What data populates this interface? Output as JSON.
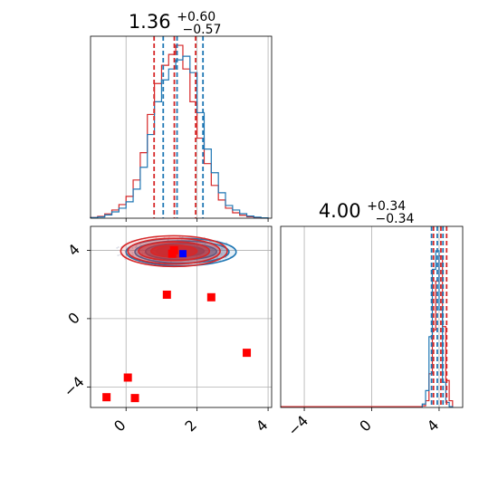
{
  "chart_data": {
    "type": "corner",
    "colors": {
      "series_a": "#1f77b4",
      "series_b": "#d62728",
      "points": "#ff0000",
      "truth": "#0000ff",
      "grid": "#b0b0b0",
      "scatter": "#c8cbd8"
    },
    "panels": {
      "param1_hist": {
        "title": {
          "median": "1.36",
          "plus": "+0.60",
          "minus": "−0.57"
        },
        "xlim": [
          -1,
          4.1
        ],
        "xticks": [
          0,
          2,
          4
        ],
        "quantiles_a": [
          0.97,
          1.36,
          2.09
        ],
        "quantiles_b": [
          0.79,
          1.36,
          1.96
        ],
        "bins": [
          -0.9,
          -0.7,
          -0.5,
          -0.3,
          -0.1,
          0.1,
          0.3,
          0.5,
          0.7,
          0.9,
          1.1,
          1.3,
          1.5,
          1.7,
          1.9,
          2.1,
          2.3,
          2.5,
          2.7,
          2.9,
          3.1,
          3.3,
          3.5,
          3.7,
          3.9
        ],
        "counts_a": [
          0.3,
          0.7,
          1.8,
          3.5,
          5.5,
          9,
          16,
          28,
          46,
          64,
          76,
          82,
          87,
          89,
          80,
          58,
          38,
          25,
          14,
          7,
          4.5,
          2.5,
          1.2,
          0.6,
          0.2
        ],
        "counts_b": [
          0.4,
          1,
          2.4,
          4.5,
          7.5,
          12,
          21,
          36,
          57,
          74,
          84,
          90,
          95,
          82,
          64,
          44,
          30,
          18,
          10,
          5.5,
          3,
          1.6,
          0.8,
          0.3,
          0.1
        ]
      },
      "param2_hist": {
        "title": {
          "median": "4.00",
          "plus": "+0.34",
          "minus": "−0.34"
        },
        "xlim": [
          -5.4,
          5.4
        ],
        "xticks": [
          -4,
          0,
          4
        ],
        "xtick_labels": [
          "−4",
          "0",
          "4"
        ],
        "quantiles_a": [
          3.66,
          4.0,
          4.34
        ],
        "quantiles_b": [
          3.56,
          4.0,
          4.34
        ],
        "bins": [
          3.1,
          3.3,
          3.5,
          3.7,
          3.9,
          4.1,
          4.3,
          4.5,
          4.7
        ],
        "counts_a": [
          2,
          10,
          42,
          82,
          93,
          58,
          15,
          3,
          0.5
        ],
        "counts_b": [
          1,
          4,
          20,
          46,
          75,
          90,
          48,
          16,
          4
        ]
      },
      "joint": {
        "xlim": [
          -1,
          4.1
        ],
        "ylim": [
          -5.2,
          5.4
        ],
        "xticks": [
          0,
          2,
          4
        ],
        "yticks": [
          -4,
          0,
          4
        ],
        "ytick_labels": [
          "−4",
          "0",
          "4"
        ],
        "contours_a": [
          {
            "x": [
              0.0,
              3.1
            ],
            "y": [
              3.1,
              4.7
            ]
          },
          {
            "x": [
              0.25,
              2.9
            ],
            "y": [
              3.25,
              4.55
            ]
          },
          {
            "x": [
              0.55,
              2.55
            ],
            "y": [
              3.45,
              4.4
            ]
          },
          {
            "x": [
              0.85,
              2.2
            ],
            "y": [
              3.65,
              4.25
            ]
          }
        ],
        "contours_b": [
          {
            "x": [
              -0.15,
              2.85
            ],
            "y": [
              3.05,
              4.85
            ]
          },
          {
            "x": [
              0.05,
              2.65
            ],
            "y": [
              3.2,
              4.7
            ]
          },
          {
            "x": [
              0.35,
              2.35
            ],
            "y": [
              3.4,
              4.5
            ]
          },
          {
            "x": [
              0.7,
              2.0
            ],
            "y": [
              3.6,
              4.3
            ]
          }
        ],
        "red_points": [
          [
            1.35,
            4.0
          ],
          [
            1.3,
            3.8
          ],
          [
            1.15,
            1.4
          ],
          [
            2.4,
            1.25
          ],
          [
            3.4,
            -2.0
          ],
          [
            0.05,
            -3.45
          ],
          [
            -0.55,
            -4.6
          ],
          [
            0.25,
            -4.65
          ]
        ],
        "truth_point": [
          1.6,
          3.8
        ]
      }
    }
  }
}
